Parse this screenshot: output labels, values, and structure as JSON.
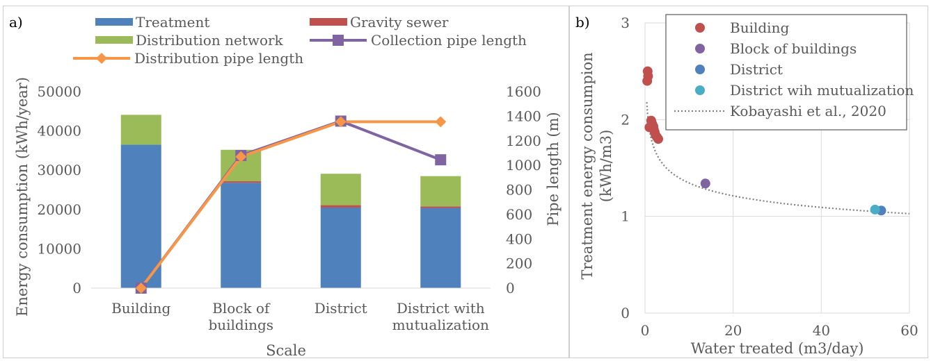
{
  "chart_data": [
    {
      "type": "bar",
      "panel_label": "a)",
      "xlabel": "Scale",
      "ylabel": "Energy consumption (kWh/year)",
      "y2label": "Pipe length (m)",
      "categories": [
        [
          "Building"
        ],
        [
          "Block of",
          "buildings"
        ],
        [
          "District"
        ],
        [
          "District with",
          "mutualization"
        ]
      ],
      "ylim": [
        0,
        50000
      ],
      "yticks": [
        0,
        10000,
        20000,
        30000,
        40000,
        50000
      ],
      "y2lim": [
        0,
        1600
      ],
      "y2ticks": [
        0,
        200,
        400,
        600,
        800,
        1000,
        1200,
        1400,
        1600
      ],
      "legend_position": "top",
      "series": [
        {
          "name": "Treatment",
          "kind": "stacked-bar",
          "color": "#4f81bd",
          "values": [
            36500,
            26800,
            20500,
            20400
          ]
        },
        {
          "name": "Gravity sewer",
          "kind": "stacked-bar",
          "color": "#c0504d",
          "values": [
            0,
            400,
            600,
            400
          ]
        },
        {
          "name": "Distribution network",
          "kind": "stacked-bar",
          "color": "#9bbb59",
          "values": [
            7600,
            8000,
            8000,
            7700
          ]
        },
        {
          "name": "Collection pipe length",
          "kind": "line",
          "axis": "y2",
          "marker": "square",
          "color": "#8064a2",
          "values": [
            0,
            1080,
            1360,
            1045
          ]
        },
        {
          "name": "Distribution pipe length",
          "kind": "line",
          "axis": "y2",
          "marker": "diamond",
          "color": "#f79646",
          "values": [
            0,
            1070,
            1355,
            1355
          ]
        }
      ]
    },
    {
      "type": "scatter",
      "panel_label": "b)",
      "xlabel": "Water treated (m3/day)",
      "ylabel": [
        "Treatment energy consumpion",
        "(kWh/m3)"
      ],
      "xlim": [
        0,
        60
      ],
      "xticks": [
        0,
        20,
        40,
        60
      ],
      "ylim": [
        0,
        3
      ],
      "yticks": [
        0,
        1,
        2,
        3
      ],
      "grid": true,
      "legend_position": "top-right",
      "series": [
        {
          "name": "Building",
          "color": "#c0504d",
          "points": [
            [
              0.6,
              2.5
            ],
            [
              0.7,
              2.45
            ],
            [
              0.5,
              2.4
            ],
            [
              1.4,
              1.99
            ],
            [
              1.6,
              1.96
            ],
            [
              1.9,
              1.93
            ],
            [
              2.0,
              1.9
            ],
            [
              1.0,
              1.92
            ],
            [
              2.2,
              1.87
            ],
            [
              2.4,
              1.84
            ],
            [
              2.7,
              1.82
            ],
            [
              3.0,
              1.8
            ]
          ]
        },
        {
          "name": "Block of buildings",
          "color": "#8064a2",
          "points": [
            [
              13.7,
              1.34
            ]
          ]
        },
        {
          "name": "District",
          "color": "#4f81bd",
          "points": [
            [
              53.6,
              1.06
            ]
          ]
        },
        {
          "name": "District wih mutualization",
          "color": "#4bacc6",
          "points": [
            [
              52.2,
              1.07
            ]
          ]
        },
        {
          "name": "Kobayashi et al., 2020",
          "kind": "trendline",
          "style": "dotted",
          "color": "#7f7f7f",
          "formula": "y = 1.9 * x^-0.15",
          "x_range": [
            0.4,
            60
          ]
        }
      ]
    }
  ]
}
